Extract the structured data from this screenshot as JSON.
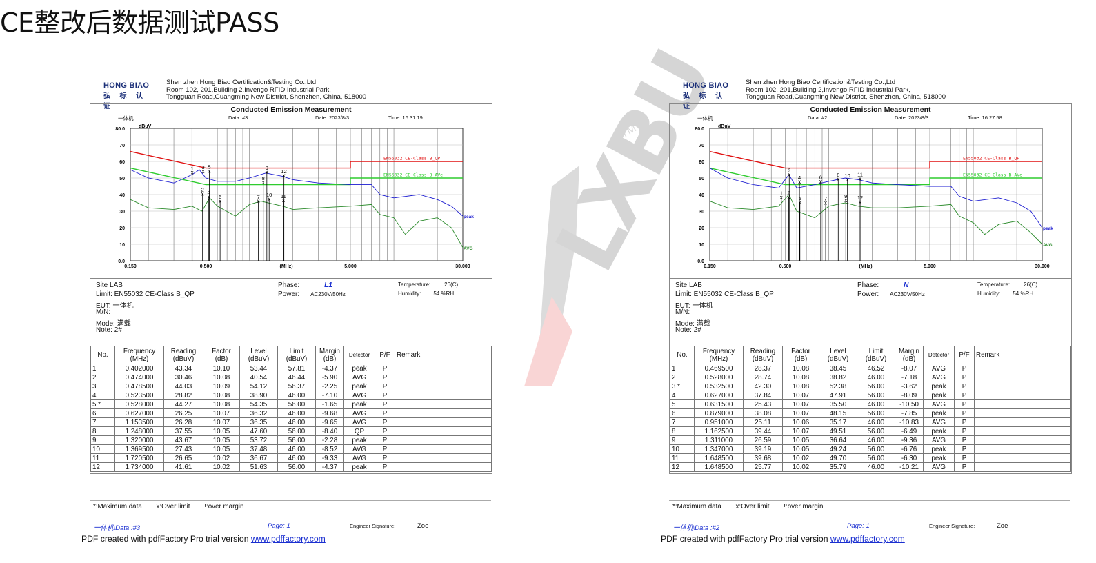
{
  "slide_title": "CE整改后数据测试PASS",
  "watermark": {
    "text": "LXBU",
    "tm": "TM"
  },
  "reports": [
    {
      "id": "left",
      "logo": {
        "line1": "HONG BIAO",
        "line2": "弘 标 认 证"
      },
      "address": [
        "Shen zhen Hong Biao Certification&Testing Co.,Ltd",
        "Room 102, 201,Building 2,Invengo RFID Industrial Park,",
        "Tongguan Road,Guangming New District, Shenzhen, China, 518000"
      ],
      "chart_heading": "Conducted Emission Measurement",
      "chart_meta": {
        "device": "一体机",
        "data": "Data :#3",
        "date": "Date: 2023/8/3",
        "time": "Time: 16:31:19"
      },
      "chart_data": {
        "type": "line",
        "title": "Conducted Emission Measurement",
        "xlabel": "(MHz)",
        "ylabel": "dBuV",
        "xscale": "log",
        "xlim": [
          0.15,
          30.0
        ],
        "ylim": [
          0.0,
          80.0
        ],
        "x_ticks": [
          "0.150",
          "0.500",
          "5.000",
          "30.000"
        ],
        "y_ticks": [
          "0.0",
          "10",
          "20",
          "30",
          "40",
          "50",
          "60",
          "70",
          "80.0"
        ],
        "series": [
          {
            "name": "EN55032 CE-Class B_QP",
            "color": "#e01010",
            "x": [
              0.15,
              0.5,
              0.5,
              5.0,
              5.0,
              30.0
            ],
            "y": [
              66,
              56,
              56,
              56,
              60,
              60
            ]
          },
          {
            "name": "EN55032 CE-Class B_AVe",
            "color": "#2ecc2e",
            "x": [
              0.15,
              0.5,
              0.5,
              5.0,
              5.0,
              30.0
            ],
            "y": [
              56,
              46,
              46,
              46,
              50,
              50
            ]
          },
          {
            "name": "peak",
            "color": "#1a1ad0",
            "x": [
              0.15,
              0.2,
              0.3,
              0.4,
              0.45,
              0.5,
              0.6,
              0.8,
              1.0,
              1.3,
              1.7,
              2.0,
              3.0,
              5.0,
              7.0,
              8.0,
              10.0,
              15.0,
              20.0,
              25.0,
              30.0
            ],
            "y": [
              55,
              50,
              47,
              52,
              55,
              50,
              48,
              48,
              50,
              53,
              51,
              49,
              47,
              46,
              46,
              40,
              38,
              40,
              37,
              33,
              27
            ]
          },
          {
            "name": "AVG",
            "color": "#2a8a2a",
            "x": [
              0.15,
              0.2,
              0.3,
              0.4,
              0.47,
              0.53,
              0.6,
              0.8,
              1.0,
              1.2,
              1.7,
              2.0,
              3.0,
              5.0,
              7.0,
              8.0,
              10.0,
              12.0,
              15.0,
              20.0,
              25.0,
              30.0
            ],
            "y": [
              37,
              32,
              31,
              33,
              30,
              38,
              33,
              27,
              34,
              36,
              33,
              31,
              32,
              33,
              34,
              28,
              26,
              16,
              24,
              26,
              20,
              8
            ]
          }
        ],
        "limit_labels": [
          "EN55032 CE-Class B_QP",
          "EN55032 CE-Class B_AVe"
        ],
        "trace_labels": [
          "peak",
          "AVG"
        ],
        "markers": [
          {
            "label": "1",
            "x": 0.402,
            "y": 53.44
          },
          {
            "label": "2",
            "x": 0.474,
            "y": 40.54
          },
          {
            "label": "3",
            "x": 0.4785,
            "y": 54.12
          },
          {
            "label": "4",
            "x": 0.5235,
            "y": 38.9
          },
          {
            "label": "5",
            "x": 0.528,
            "y": 54.35
          },
          {
            "label": "6",
            "x": 0.627,
            "y": 36.32
          },
          {
            "label": "7",
            "x": 1.1535,
            "y": 36.35
          },
          {
            "label": "8",
            "x": 1.248,
            "y": 47.6
          },
          {
            "label": "9",
            "x": 1.32,
            "y": 53.72
          },
          {
            "label": "10",
            "x": 1.3695,
            "y": 37.48
          },
          {
            "label": "11",
            "x": 1.7205,
            "y": 36.67
          },
          {
            "label": "12",
            "x": 1.734,
            "y": 51.63
          }
        ]
      },
      "info": {
        "site": "Site LAB",
        "limit": "Limit: EN55032 CE-Class B_QP",
        "eut_label": "EUT:",
        "eut": "一体机",
        "mn": "M/N:",
        "mode_label": "Mode:",
        "mode": "满载",
        "note_label": "Note:",
        "note": "2#",
        "phase_label": "Phase:",
        "phase": "L1",
        "power_label": "Power:",
        "power": "AC230V/50Hz",
        "temp_label": "Temperature:",
        "temp": "26(C)",
        "hum_label": "Humidity:",
        "hum": "54 %RH"
      },
      "table": {
        "headers": [
          "No.",
          "Frequency (MHz)",
          "Reading (dBuV)",
          "Factor (dB)",
          "Level (dBuV)",
          "Limit (dBuV)",
          "Margin (dB)",
          "Detector",
          "P/F",
          "Remark"
        ],
        "rows": [
          [
            "1",
            "0.402000",
            "43.34",
            "10.10",
            "53.44",
            "57.81",
            "-4.37",
            "peak",
            "P",
            ""
          ],
          [
            "2",
            "0.474000",
            "30.46",
            "10.08",
            "40.54",
            "46.44",
            "-5.90",
            "AVG",
            "P",
            ""
          ],
          [
            "3",
            "0.478500",
            "44.03",
            "10.09",
            "54.12",
            "56.37",
            "-2.25",
            "peak",
            "P",
            ""
          ],
          [
            "4",
            "0.523500",
            "28.82",
            "10.08",
            "38.90",
            "46.00",
            "-7.10",
            "AVG",
            "P",
            ""
          ],
          [
            "5 *",
            "0.528000",
            "44.27",
            "10.08",
            "54.35",
            "56.00",
            "-1.65",
            "peak",
            "P",
            ""
          ],
          [
            "6",
            "0.627000",
            "26.25",
            "10.07",
            "36.32",
            "46.00",
            "-9.68",
            "AVG",
            "P",
            ""
          ],
          [
            "7",
            "1.153500",
            "26.28",
            "10.07",
            "36.35",
            "46.00",
            "-9.65",
            "AVG",
            "P",
            ""
          ],
          [
            "8",
            "1.248000",
            "37.55",
            "10.05",
            "47.60",
            "56.00",
            "-8.40",
            "QP",
            "P",
            ""
          ],
          [
            "9",
            "1.320000",
            "43.67",
            "10.05",
            "53.72",
            "56.00",
            "-2.28",
            "peak",
            "P",
            ""
          ],
          [
            "10",
            "1.369500",
            "27.43",
            "10.05",
            "37.48",
            "46.00",
            "-8.52",
            "AVG",
            "P",
            ""
          ],
          [
            "11",
            "1.720500",
            "26.65",
            "10.02",
            "36.67",
            "46.00",
            "-9.33",
            "AVG",
            "P",
            ""
          ],
          [
            "12",
            "1.734000",
            "41.61",
            "10.02",
            "51.63",
            "56.00",
            "-4.37",
            "peak",
            "P",
            ""
          ]
        ]
      },
      "legend": [
        "*:Maximum data",
        "x:Over limit",
        "!:over margin"
      ],
      "footer": {
        "file": "一体机\\Data :#3",
        "page": "Page:  1",
        "sig_label": "Engineer Signature:",
        "sig": "Zoe"
      },
      "pdf_note": {
        "text": "PDF created with pdfFactory Pro trial version ",
        "link": "www.pdffactory.com"
      }
    },
    {
      "id": "right",
      "logo": {
        "line1": "HONG BIAO",
        "line2": "弘 标 认 证"
      },
      "address": [
        "Shen zhen Hong Biao Certification&Testing Co.,Ltd",
        "Room 102, 201,Building 2,Invengo RFID Industrial Park,",
        "Tongguan Road,Guangming New District, Shenzhen, China, 518000"
      ],
      "chart_heading": "Conducted Emission Measurement",
      "chart_meta": {
        "device": "一体机",
        "data": "Data :#2",
        "date": "Date: 2023/8/3",
        "time": "Time: 16:27:58"
      },
      "chart_data": {
        "type": "line",
        "title": "Conducted Emission Measurement",
        "xlabel": "(MHz)",
        "ylabel": "dBuV",
        "xscale": "log",
        "xlim": [
          0.15,
          30.0
        ],
        "ylim": [
          0.0,
          80.0
        ],
        "x_ticks": [
          "0.150",
          "0.500",
          "5.000",
          "30.000"
        ],
        "y_ticks": [
          "0.0",
          "10",
          "20",
          "30",
          "40",
          "50",
          "60",
          "70",
          "80.0"
        ],
        "series": [
          {
            "name": "EN55032 CE-Class B_QP",
            "color": "#e01010",
            "x": [
              0.15,
              0.5,
              0.5,
              5.0,
              5.0,
              30.0
            ],
            "y": [
              66,
              56,
              56,
              56,
              60,
              60
            ]
          },
          {
            "name": "EN55032 CE-Class B_AVe",
            "color": "#2ecc2e",
            "x": [
              0.15,
              0.5,
              0.5,
              5.0,
              5.0,
              30.0
            ],
            "y": [
              56,
              46,
              46,
              46,
              50,
              50
            ]
          },
          {
            "name": "peak",
            "color": "#1a1ad0",
            "x": [
              0.15,
              0.2,
              0.3,
              0.45,
              0.53,
              0.6,
              0.8,
              1.0,
              1.3,
              1.6,
              2.0,
              3.0,
              5.0,
              7.0,
              8.0,
              10.0,
              15.0,
              20.0,
              25.0,
              30.0
            ],
            "y": [
              56,
              50,
              46,
              44,
              52,
              44,
              46,
              48,
              50,
              49,
              47,
              46,
              45,
              45,
              39,
              36,
              38,
              35,
              30,
              20
            ]
          },
          {
            "name": "AVG",
            "color": "#2a8a2a",
            "x": [
              0.15,
              0.2,
              0.3,
              0.45,
              0.53,
              0.6,
              0.8,
              1.0,
              1.3,
              1.6,
              2.0,
              3.0,
              5.0,
              7.0,
              8.0,
              10.0,
              12.0,
              15.0,
              20.0,
              25.0,
              30.0
            ],
            "y": [
              36,
              32,
              31,
              33,
              40,
              30,
              26,
              33,
              35,
              33,
              32,
              32,
              33,
              34,
              27,
              23,
              16,
              22,
              24,
              17,
              10
            ]
          }
        ],
        "limit_labels": [
          "EN55032 CE-Class B_QP",
          "EN55032 CE-Class B_AVe"
        ],
        "trace_labels": [
          "peak",
          "AVG"
        ],
        "markers": [
          {
            "label": "1",
            "x": 0.4695,
            "y": 38.45
          },
          {
            "label": "2",
            "x": 0.528,
            "y": 38.82
          },
          {
            "label": "3",
            "x": 0.5325,
            "y": 52.38
          },
          {
            "label": "4",
            "x": 0.627,
            "y": 47.91
          },
          {
            "label": "5",
            "x": 0.6315,
            "y": 35.5
          },
          {
            "label": "6",
            "x": 0.879,
            "y": 48.15
          },
          {
            "label": "7",
            "x": 0.951,
            "y": 35.17
          },
          {
            "label": "8",
            "x": 1.1625,
            "y": 49.51
          },
          {
            "label": "9",
            "x": 1.311,
            "y": 36.64
          },
          {
            "label": "10",
            "x": 1.347,
            "y": 49.24
          },
          {
            "label": "11",
            "x": 1.6485,
            "y": 49.7
          },
          {
            "label": "12",
            "x": 1.6485,
            "y": 35.79
          }
        ]
      },
      "info": {
        "site": "Site LAB",
        "limit": "Limit: EN55032 CE-Class B_QP",
        "eut_label": "EUT:",
        "eut": "一体机",
        "mn": "M/N:",
        "mode_label": "Mode:",
        "mode": "满载",
        "note_label": "Note:",
        "note": "2#",
        "phase_label": "Phase:",
        "phase": "N",
        "power_label": "Power:",
        "power": "AC230V/50Hz",
        "temp_label": "Temperature:",
        "temp": "26(C)",
        "hum_label": "Humidity:",
        "hum": "54 %RH"
      },
      "table": {
        "headers": [
          "No.",
          "Frequency (MHz)",
          "Reading (dBuV)",
          "Factor (dB)",
          "Level (dBuV)",
          "Limit (dBuV)",
          "Margin (dB)",
          "Detector",
          "P/F",
          "Remark"
        ],
        "rows": [
          [
            "1",
            "0.469500",
            "28.37",
            "10.08",
            "38.45",
            "46.52",
            "-8.07",
            "AVG",
            "P",
            ""
          ],
          [
            "2",
            "0.528000",
            "28.74",
            "10.08",
            "38.82",
            "46.00",
            "-7.18",
            "AVG",
            "P",
            ""
          ],
          [
            "3 *",
            "0.532500",
            "42.30",
            "10.08",
            "52.38",
            "56.00",
            "-3.62",
            "peak",
            "P",
            ""
          ],
          [
            "4",
            "0.627000",
            "37.84",
            "10.07",
            "47.91",
            "56.00",
            "-8.09",
            "peak",
            "P",
            ""
          ],
          [
            "5",
            "0.631500",
            "25.43",
            "10.07",
            "35.50",
            "46.00",
            "-10.50",
            "AVG",
            "P",
            ""
          ],
          [
            "6",
            "0.879000",
            "38.08",
            "10.07",
            "48.15",
            "56.00",
            "-7.85",
            "peak",
            "P",
            ""
          ],
          [
            "7",
            "0.951000",
            "25.11",
            "10.06",
            "35.17",
            "46.00",
            "-10.83",
            "AVG",
            "P",
            ""
          ],
          [
            "8",
            "1.162500",
            "39.44",
            "10.07",
            "49.51",
            "56.00",
            "-6.49",
            "peak",
            "P",
            ""
          ],
          [
            "9",
            "1.311000",
            "26.59",
            "10.05",
            "36.64",
            "46.00",
            "-9.36",
            "AVG",
            "P",
            ""
          ],
          [
            "10",
            "1.347000",
            "39.19",
            "10.05",
            "49.24",
            "56.00",
            "-6.76",
            "peak",
            "P",
            ""
          ],
          [
            "11",
            "1.648500",
            "39.68",
            "10.02",
            "49.70",
            "56.00",
            "-6.30",
            "peak",
            "P",
            ""
          ],
          [
            "12",
            "1.648500",
            "25.77",
            "10.02",
            "35.79",
            "46.00",
            "-10.21",
            "AVG",
            "P",
            ""
          ]
        ]
      },
      "legend": [
        "*:Maximum data",
        "x:Over limit",
        "!:over margin"
      ],
      "footer": {
        "file": "一体机\\Data :#2",
        "page": "Page:  1",
        "sig_label": "Engineer Signature:",
        "sig": "Zoe"
      },
      "pdf_note": {
        "text": "PDF created with pdfFactory Pro trial version ",
        "link": "www.pdffactory.com"
      }
    }
  ]
}
